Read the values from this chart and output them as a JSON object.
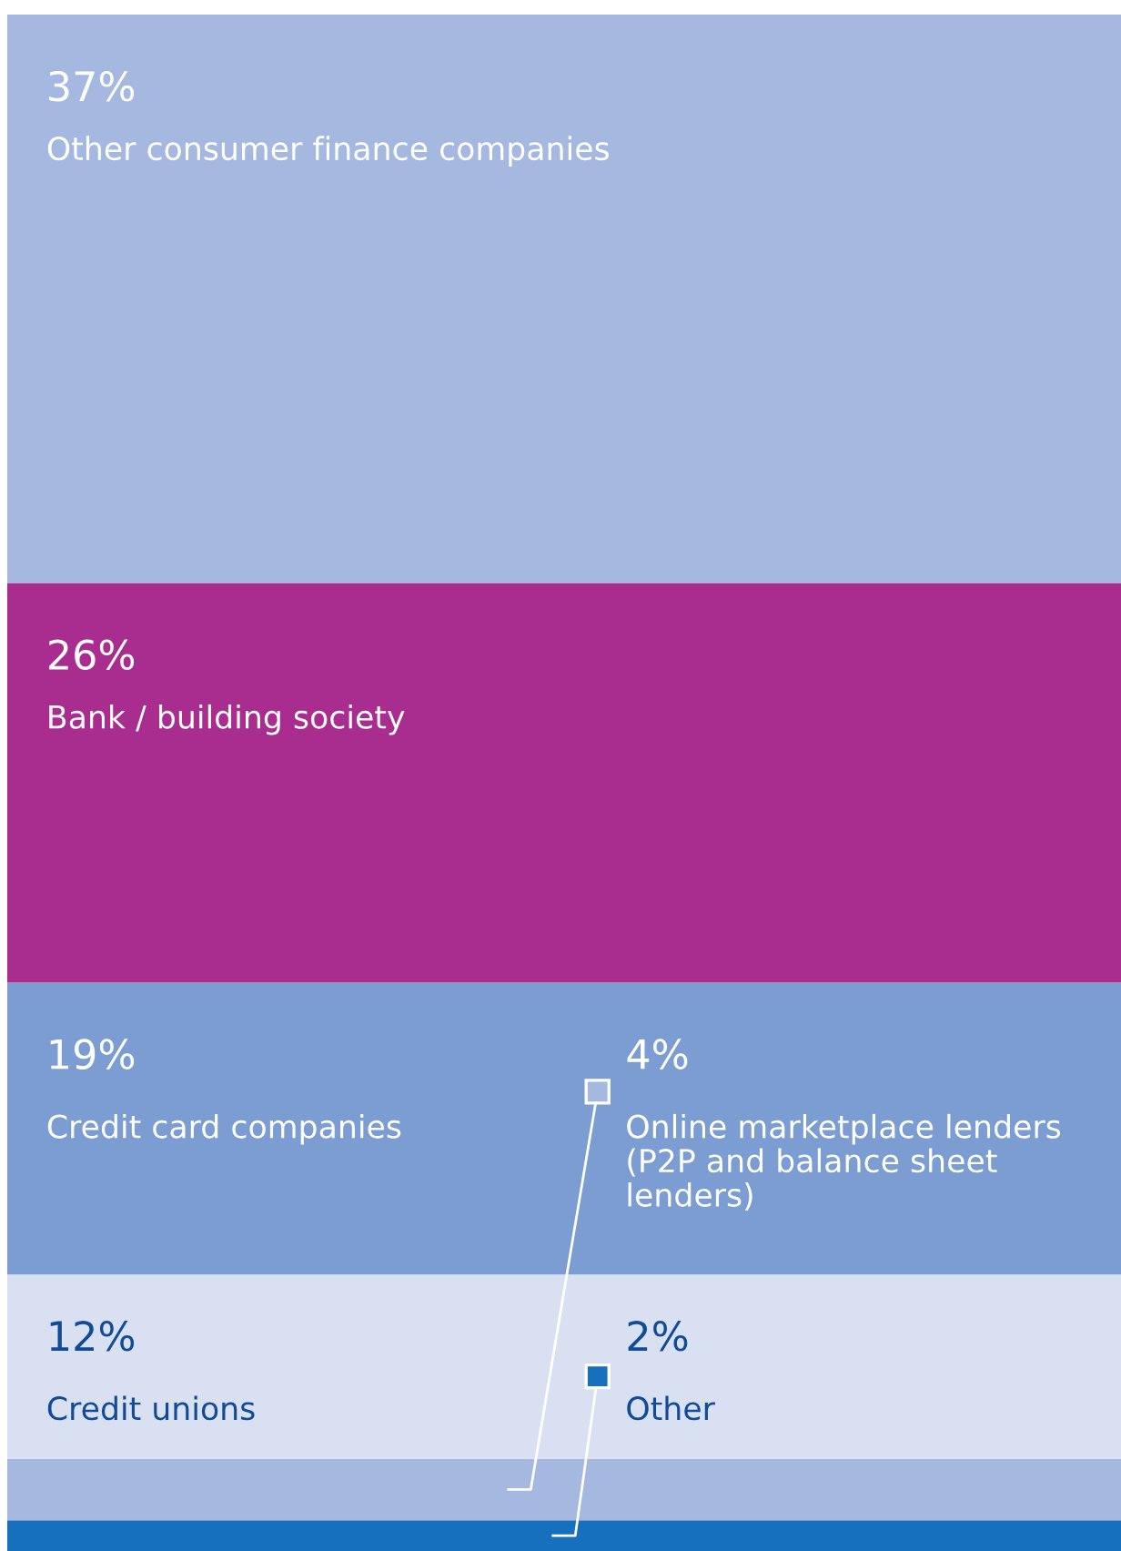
{
  "chart_data": {
    "type": "bar",
    "stacked": true,
    "categories": [
      null
    ],
    "series": [
      {
        "name": "Other",
        "color": "#1670bd",
        "values": [
          2
        ],
        "value_labels": [
          "2%"
        ]
      },
      {
        "name": "Online marketplace lenders (P2P and balance sheet lenders)",
        "color": "#a4b8e0",
        "values": [
          4
        ],
        "value_labels": [
          "4%"
        ]
      },
      {
        "name": "Credit unions",
        "color": "#d9e0f2",
        "values": [
          12
        ],
        "value_labels": [
          "12%"
        ]
      },
      {
        "name": "Credit card companies",
        "color": "#7b9dd2",
        "values": [
          19
        ],
        "value_labels": [
          "19%"
        ]
      },
      {
        "name": "Bank / building society",
        "color": "#a82d8e",
        "values": [
          26
        ],
        "value_labels": [
          "26%"
        ]
      },
      {
        "name": "Other consumer finance companies",
        "color": "#a4b8e0",
        "values": [
          37
        ],
        "value_labels": [
          "37%"
        ]
      }
    ]
  }
}
